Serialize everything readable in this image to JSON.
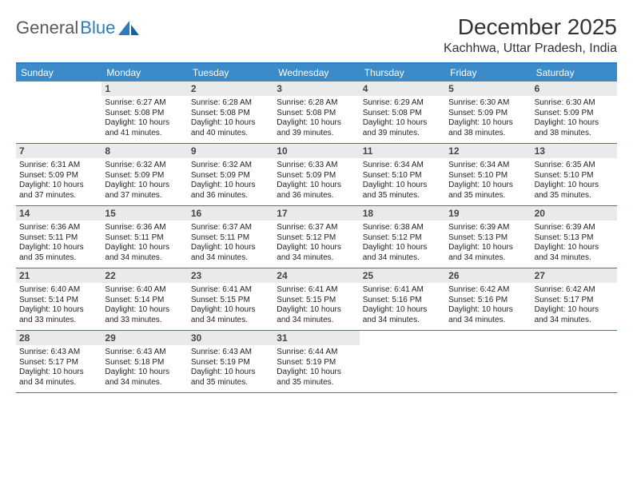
{
  "brand": {
    "part1": "General",
    "part2": "Blue"
  },
  "title": "December 2025",
  "location": "Kachhwa, Uttar Pradesh, India",
  "colors": {
    "accent": "#3b8bc9",
    "rule": "#2f7bbf",
    "daynum_bg": "#e9eaeb",
    "text": "#222222",
    "bg": "#ffffff"
  },
  "weekdays": [
    "Sunday",
    "Monday",
    "Tuesday",
    "Wednesday",
    "Thursday",
    "Friday",
    "Saturday"
  ],
  "calendar": {
    "first_weekday_index": 1,
    "days": [
      {
        "n": 1,
        "sunrise": "6:27 AM",
        "sunset": "5:08 PM",
        "daylight": "10 hours and 41 minutes."
      },
      {
        "n": 2,
        "sunrise": "6:28 AM",
        "sunset": "5:08 PM",
        "daylight": "10 hours and 40 minutes."
      },
      {
        "n": 3,
        "sunrise": "6:28 AM",
        "sunset": "5:08 PM",
        "daylight": "10 hours and 39 minutes."
      },
      {
        "n": 4,
        "sunrise": "6:29 AM",
        "sunset": "5:08 PM",
        "daylight": "10 hours and 39 minutes."
      },
      {
        "n": 5,
        "sunrise": "6:30 AM",
        "sunset": "5:09 PM",
        "daylight": "10 hours and 38 minutes."
      },
      {
        "n": 6,
        "sunrise": "6:30 AM",
        "sunset": "5:09 PM",
        "daylight": "10 hours and 38 minutes."
      },
      {
        "n": 7,
        "sunrise": "6:31 AM",
        "sunset": "5:09 PM",
        "daylight": "10 hours and 37 minutes."
      },
      {
        "n": 8,
        "sunrise": "6:32 AM",
        "sunset": "5:09 PM",
        "daylight": "10 hours and 37 minutes."
      },
      {
        "n": 9,
        "sunrise": "6:32 AM",
        "sunset": "5:09 PM",
        "daylight": "10 hours and 36 minutes."
      },
      {
        "n": 10,
        "sunrise": "6:33 AM",
        "sunset": "5:09 PM",
        "daylight": "10 hours and 36 minutes."
      },
      {
        "n": 11,
        "sunrise": "6:34 AM",
        "sunset": "5:10 PM",
        "daylight": "10 hours and 35 minutes."
      },
      {
        "n": 12,
        "sunrise": "6:34 AM",
        "sunset": "5:10 PM",
        "daylight": "10 hours and 35 minutes."
      },
      {
        "n": 13,
        "sunrise": "6:35 AM",
        "sunset": "5:10 PM",
        "daylight": "10 hours and 35 minutes."
      },
      {
        "n": 14,
        "sunrise": "6:36 AM",
        "sunset": "5:11 PM",
        "daylight": "10 hours and 35 minutes."
      },
      {
        "n": 15,
        "sunrise": "6:36 AM",
        "sunset": "5:11 PM",
        "daylight": "10 hours and 34 minutes."
      },
      {
        "n": 16,
        "sunrise": "6:37 AM",
        "sunset": "5:11 PM",
        "daylight": "10 hours and 34 minutes."
      },
      {
        "n": 17,
        "sunrise": "6:37 AM",
        "sunset": "5:12 PM",
        "daylight": "10 hours and 34 minutes."
      },
      {
        "n": 18,
        "sunrise": "6:38 AM",
        "sunset": "5:12 PM",
        "daylight": "10 hours and 34 minutes."
      },
      {
        "n": 19,
        "sunrise": "6:39 AM",
        "sunset": "5:13 PM",
        "daylight": "10 hours and 34 minutes."
      },
      {
        "n": 20,
        "sunrise": "6:39 AM",
        "sunset": "5:13 PM",
        "daylight": "10 hours and 34 minutes."
      },
      {
        "n": 21,
        "sunrise": "6:40 AM",
        "sunset": "5:14 PM",
        "daylight": "10 hours and 33 minutes."
      },
      {
        "n": 22,
        "sunrise": "6:40 AM",
        "sunset": "5:14 PM",
        "daylight": "10 hours and 33 minutes."
      },
      {
        "n": 23,
        "sunrise": "6:41 AM",
        "sunset": "5:15 PM",
        "daylight": "10 hours and 34 minutes."
      },
      {
        "n": 24,
        "sunrise": "6:41 AM",
        "sunset": "5:15 PM",
        "daylight": "10 hours and 34 minutes."
      },
      {
        "n": 25,
        "sunrise": "6:41 AM",
        "sunset": "5:16 PM",
        "daylight": "10 hours and 34 minutes."
      },
      {
        "n": 26,
        "sunrise": "6:42 AM",
        "sunset": "5:16 PM",
        "daylight": "10 hours and 34 minutes."
      },
      {
        "n": 27,
        "sunrise": "6:42 AM",
        "sunset": "5:17 PM",
        "daylight": "10 hours and 34 minutes."
      },
      {
        "n": 28,
        "sunrise": "6:43 AM",
        "sunset": "5:17 PM",
        "daylight": "10 hours and 34 minutes."
      },
      {
        "n": 29,
        "sunrise": "6:43 AM",
        "sunset": "5:18 PM",
        "daylight": "10 hours and 34 minutes."
      },
      {
        "n": 30,
        "sunrise": "6:43 AM",
        "sunset": "5:19 PM",
        "daylight": "10 hours and 35 minutes."
      },
      {
        "n": 31,
        "sunrise": "6:44 AM",
        "sunset": "5:19 PM",
        "daylight": "10 hours and 35 minutes."
      }
    ]
  },
  "labels": {
    "sunrise": "Sunrise:",
    "sunset": "Sunset:",
    "daylight": "Daylight:"
  }
}
